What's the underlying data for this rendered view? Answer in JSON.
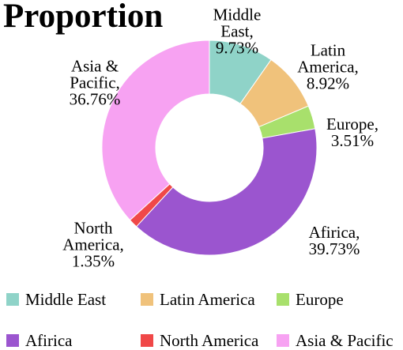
{
  "chart_data": {
    "type": "donut",
    "title": "Proportion",
    "categories": [
      "Middle East",
      "Latin America",
      "Europe",
      "Afirica",
      "North America",
      "Asia & Pacific"
    ],
    "values": [
      9.73,
      8.92,
      3.51,
      39.73,
      1.35,
      36.76
    ],
    "value_labels": [
      "Middle East, 9.73%",
      "Latin America, 8.92%",
      "Europe, 3.51%",
      "Afirica, 39.73%",
      "North America, 1.35%",
      "Asia & Pacific, 36.76%"
    ],
    "colors": [
      "#8fd3c8",
      "#f0c27b",
      "#a8e06c",
      "#9b55cf",
      "#f04848",
      "#f7a2f2"
    ],
    "legend": "bottom"
  }
}
